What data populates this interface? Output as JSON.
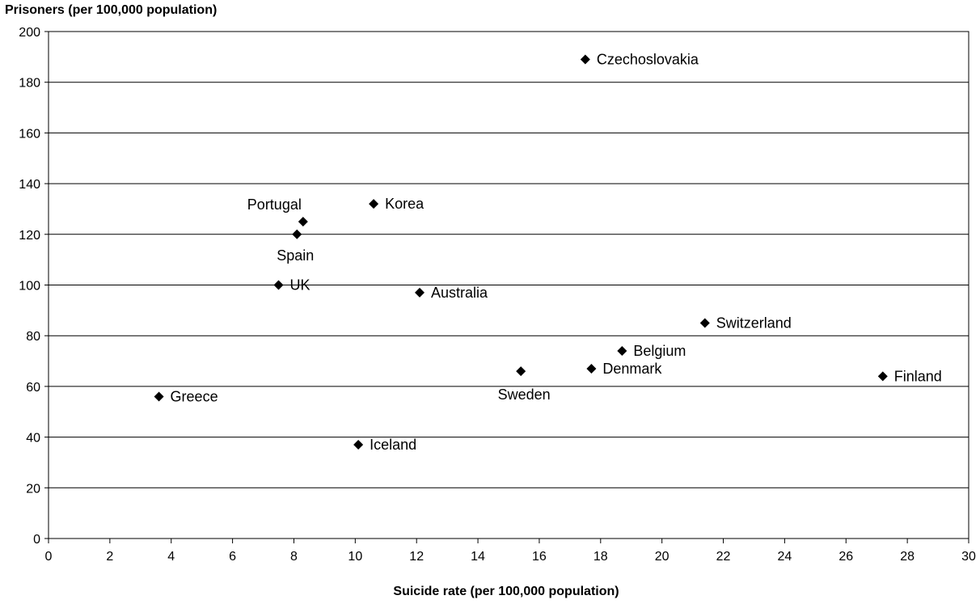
{
  "chart_data": {
    "type": "scatter",
    "title": "",
    "xlabel": "Suicide rate (per 100,000 population)",
    "ylabel": "Prisoners (per 100,000 population)",
    "xlim": [
      0,
      30
    ],
    "ylim": [
      0,
      200
    ],
    "x_ticks": [
      0,
      2,
      4,
      6,
      8,
      10,
      12,
      14,
      16,
      18,
      20,
      22,
      24,
      26,
      28,
      30
    ],
    "y_ticks": [
      0,
      20,
      40,
      60,
      80,
      100,
      120,
      140,
      160,
      180,
      200
    ],
    "grid": "horizontal",
    "marker": "diamond",
    "marker_color": "#000000",
    "points": [
      {
        "label": "Czechoslovakia",
        "x": 17.5,
        "y": 189
      },
      {
        "label": "Portugal",
        "x": 8.3,
        "y": 125
      },
      {
        "label": "Korea",
        "x": 10.6,
        "y": 132
      },
      {
        "label": "Spain",
        "x": 8.1,
        "y": 120
      },
      {
        "label": "UK",
        "x": 7.5,
        "y": 100
      },
      {
        "label": "Australia",
        "x": 12.1,
        "y": 97
      },
      {
        "label": "Switzerland",
        "x": 21.4,
        "y": 85
      },
      {
        "label": "Belgium",
        "x": 18.7,
        "y": 74
      },
      {
        "label": "Denmark",
        "x": 17.7,
        "y": 67
      },
      {
        "label": "Sweden",
        "x": 15.4,
        "y": 66
      },
      {
        "label": "Finland",
        "x": 27.2,
        "y": 64
      },
      {
        "label": "Greece",
        "x": 3.6,
        "y": 56
      },
      {
        "label": "Iceland",
        "x": 10.1,
        "y": 37
      }
    ]
  }
}
